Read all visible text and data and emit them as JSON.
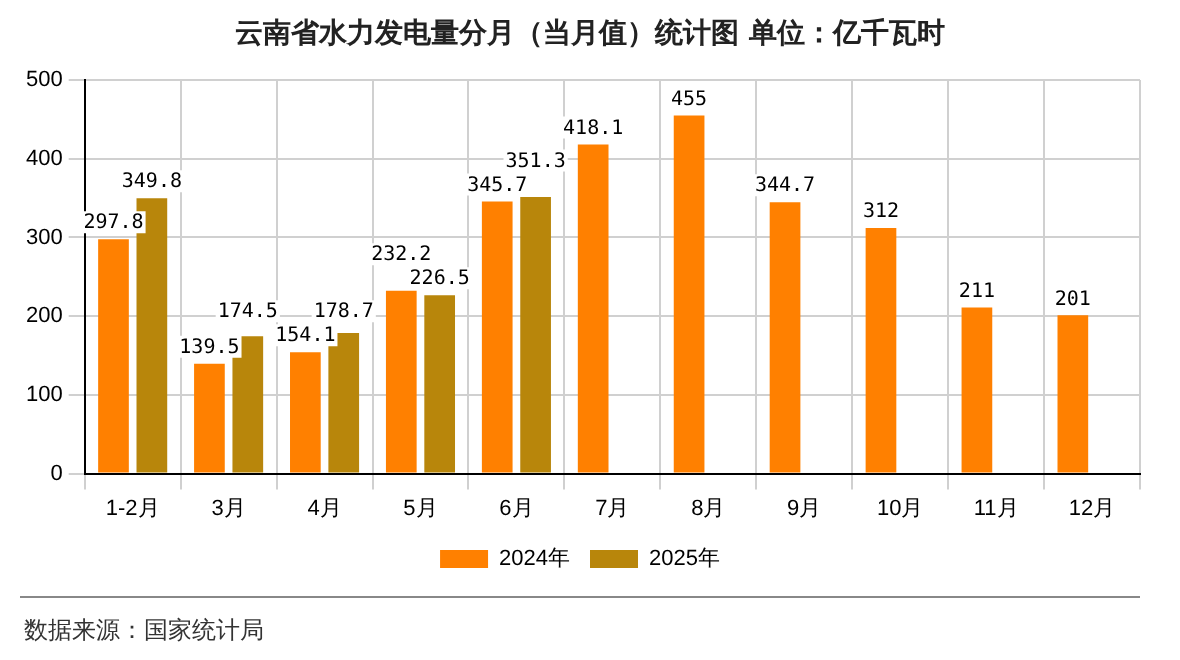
{
  "chart_data": {
    "type": "bar",
    "title": "云南省水力发电量分月（当月值）统计图 单位：亿千瓦时",
    "categories": [
      "1-2月",
      "3月",
      "4月",
      "5月",
      "6月",
      "7月",
      "8月",
      "9月",
      "10月",
      "11月",
      "12月"
    ],
    "series": [
      {
        "name": "2024年",
        "color": "#ff8000",
        "values": [
          297.8,
          139.5,
          154.1,
          232.2,
          345.7,
          418.1,
          455,
          344.7,
          312,
          211,
          201
        ]
      },
      {
        "name": "2025年",
        "color": "#b8860b",
        "values": [
          349.8,
          174.5,
          178.7,
          226.5,
          351.3,
          null,
          null,
          null,
          null,
          null,
          null
        ]
      }
    ],
    "ylim": [
      0,
      500
    ],
    "yticks": [
      0,
      100,
      200,
      300,
      400,
      500
    ],
    "grid": true,
    "legend": "bottom",
    "data_labels": true,
    "annotations": [
      "数据来源：国家统计局"
    ]
  }
}
